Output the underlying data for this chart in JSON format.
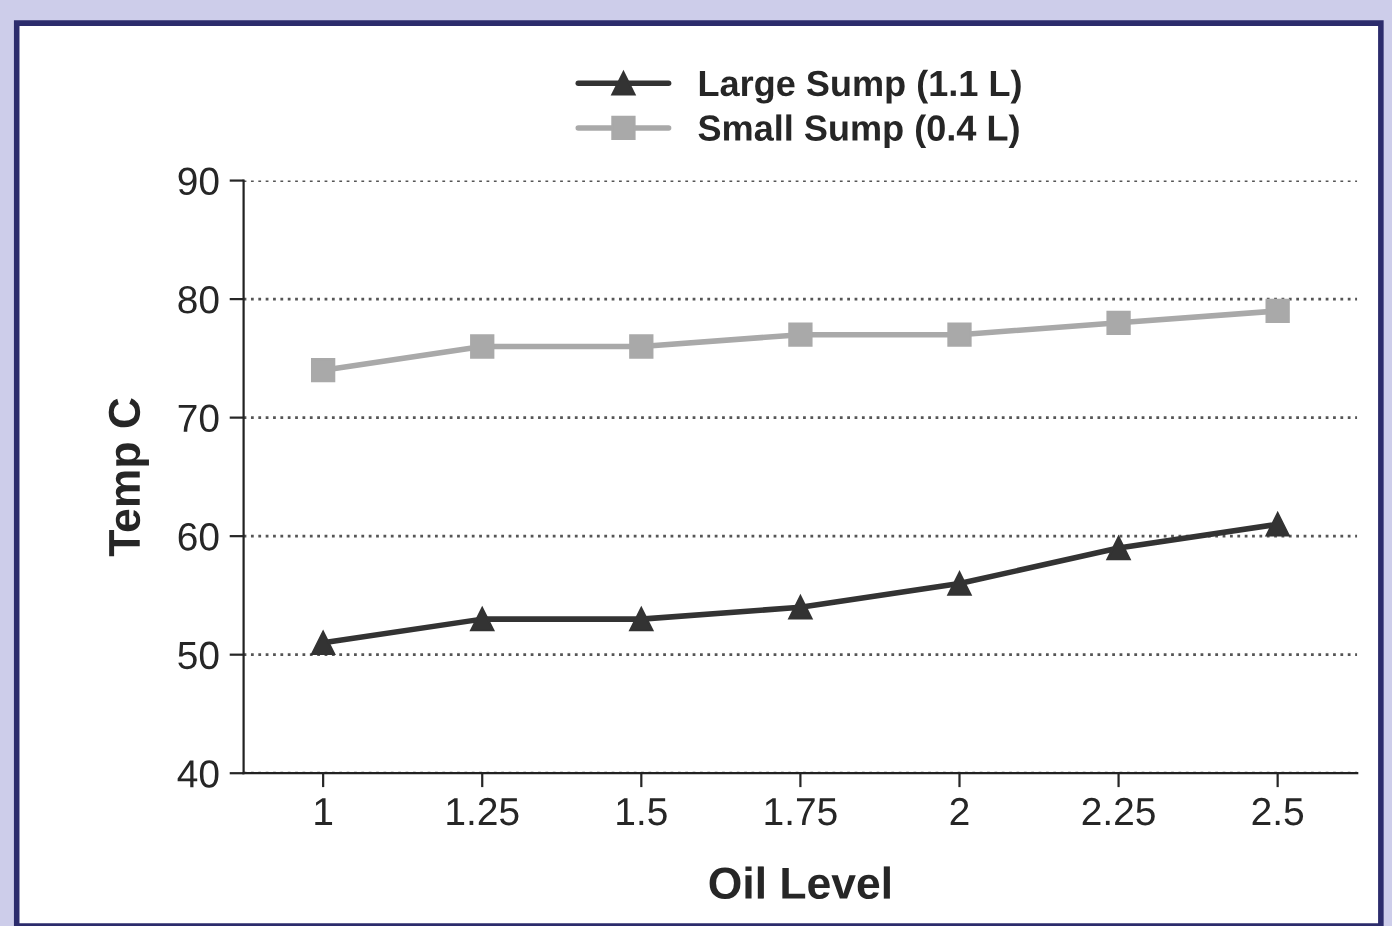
{
  "chart_data": {
    "type": "line",
    "xlabel": "Oil Level",
    "ylabel": "Temp C",
    "categories": [
      "1",
      "1.25",
      "1.5",
      "1.75",
      "2",
      "2.25",
      "2.5"
    ],
    "series": [
      {
        "name": "Large Sump (1.1 L)",
        "color": "#333333",
        "marker": "triangle",
        "values": [
          51,
          53,
          53,
          54,
          56,
          59,
          61
        ]
      },
      {
        "name": "Small Sump (0.4 L)",
        "color": "#a9a9a9",
        "marker": "square",
        "values": [
          74,
          76,
          76,
          77,
          77,
          78,
          79
        ]
      }
    ],
    "ylim": [
      40,
      90
    ],
    "yticks": [
      40,
      50,
      60,
      70,
      80,
      90
    ],
    "grid": "y",
    "legend": "top",
    "line_style": "solid"
  }
}
